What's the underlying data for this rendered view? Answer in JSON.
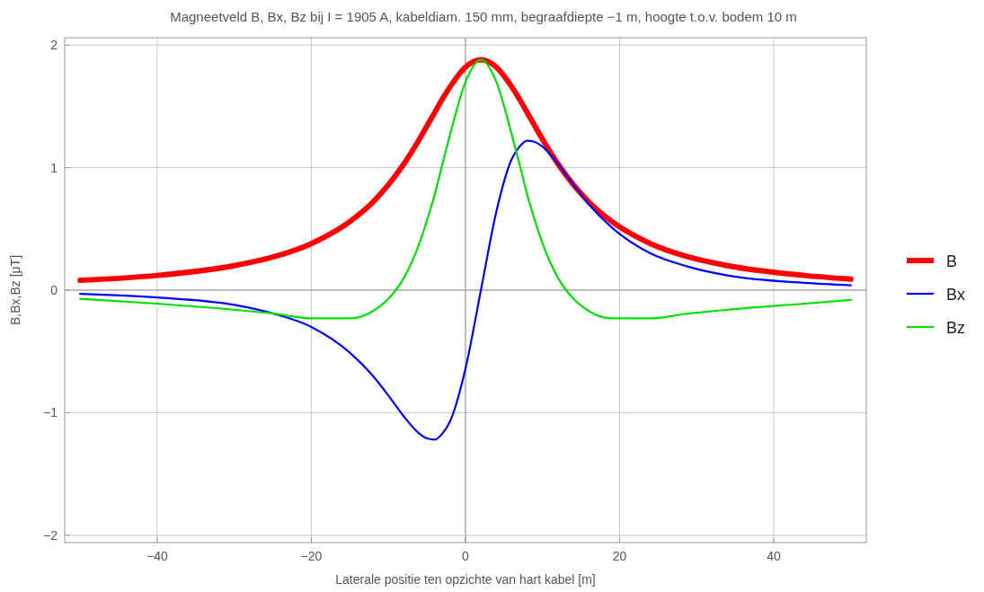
{
  "chart_data": {
    "type": "line",
    "title": "Magneetveld B, Bx, Bz bij I = 1905 A, kabeldiam. 150 mm, begraafdiepte −1 m, hoogte t.o.v. bodem 10 m",
    "xlabel": "Laterale positie ten opzichte van hart kabel [m]",
    "ylabel": "B,Bx,Bz [μT]",
    "x": [
      -50,
      -40,
      -30,
      -25,
      -20,
      -15,
      -12,
      -10,
      -8,
      -6,
      -5,
      -4,
      -3,
      -2,
      0,
      2,
      4,
      6,
      7,
      8,
      9,
      10,
      12,
      14,
      16,
      19,
      24,
      29,
      34,
      44,
      50
    ],
    "series": [
      {
        "name": "B",
        "color": "#ff0000",
        "values": [
          0.08,
          0.12,
          0.2,
          0.27,
          0.38,
          0.56,
          0.72,
          0.86,
          1.03,
          1.23,
          1.34,
          1.45,
          1.56,
          1.66,
          1.82,
          1.88,
          1.82,
          1.66,
          1.56,
          1.45,
          1.34,
          1.23,
          1.03,
          0.86,
          0.72,
          0.56,
          0.38,
          0.27,
          0.2,
          0.12,
          0.09
        ]
      },
      {
        "name": "Bx",
        "color": "#0000ff",
        "values": [
          -0.03,
          -0.06,
          -0.12,
          -0.19,
          -0.3,
          -0.51,
          -0.7,
          -0.86,
          -1.03,
          -1.17,
          -1.21,
          -1.22,
          -1.17,
          -1.07,
          -0.64,
          0,
          0.64,
          1.07,
          1.17,
          1.22,
          1.21,
          1.17,
          1.03,
          0.86,
          0.7,
          0.51,
          0.3,
          0.19,
          0.12,
          0.06,
          0.04
        ]
      },
      {
        "name": "Bz",
        "color": "#00e000",
        "values": [
          -0.07,
          -0.11,
          -0.16,
          -0.19,
          -0.23,
          -0.23,
          -0.17,
          -0.07,
          0.1,
          0.38,
          0.57,
          0.78,
          1.03,
          1.27,
          1.7,
          1.88,
          1.7,
          1.27,
          1.03,
          0.78,
          0.57,
          0.38,
          0.1,
          -0.07,
          -0.17,
          -0.23,
          -0.23,
          -0.19,
          -0.16,
          -0.11,
          -0.08
        ]
      }
    ],
    "xlim": [
      -52,
      52
    ],
    "ylim": [
      -2.06,
      2.06
    ],
    "xticks": [
      {
        "value": -40,
        "label": "−40"
      },
      {
        "value": -20,
        "label": "−20"
      },
      0,
      20,
      40
    ],
    "yticks": [
      {
        "value": -2,
        "label": "−2"
      },
      {
        "value": -1,
        "label": "−1"
      },
      0,
      1,
      2
    ],
    "grid": true,
    "legend": "right"
  }
}
